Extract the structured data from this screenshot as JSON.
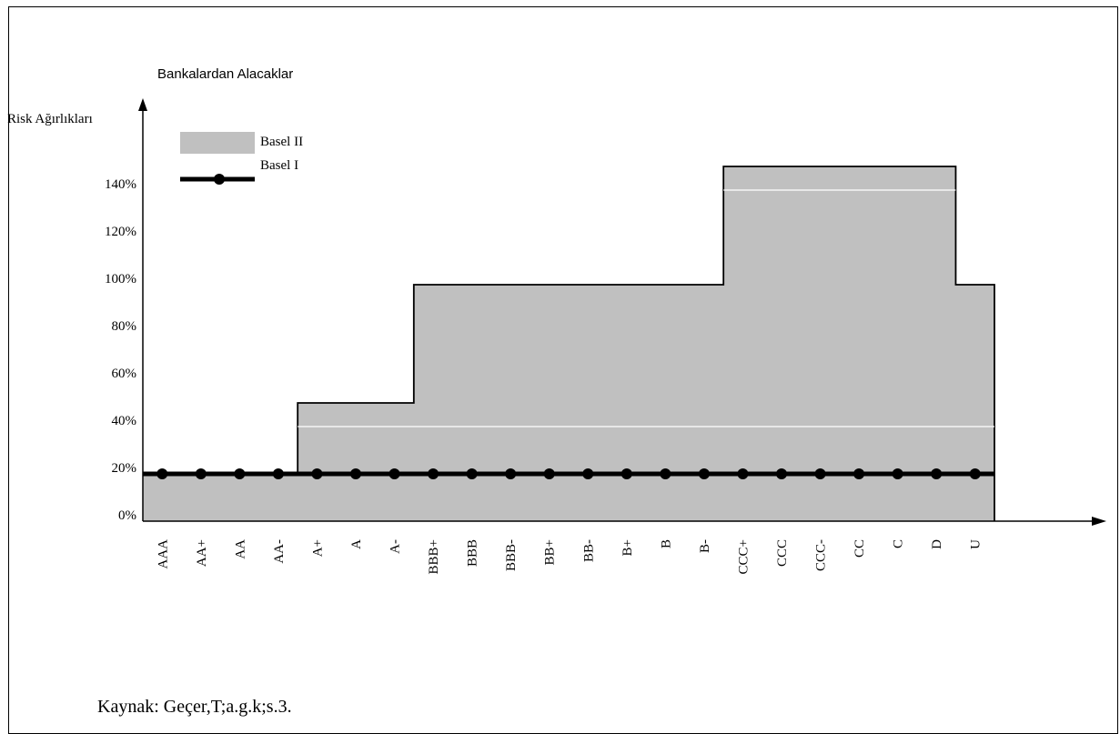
{
  "chart_data": {
    "type": "area",
    "title": "Bankalardan Alacaklar",
    "ylabel": "Risk Ağırlıkları",
    "xlabel": "",
    "ylim": [
      0,
      150
    ],
    "yticks": [
      "0%",
      "20%",
      "40%",
      "60%",
      "80%",
      "100%",
      "120%",
      "140%"
    ],
    "yticks_values": [
      0,
      20,
      40,
      60,
      80,
      100,
      120,
      140
    ],
    "categories": [
      "AAA",
      "AA+",
      "AA",
      "AA-",
      "A+",
      "A",
      "A-",
      "BBB+",
      "BBB",
      "BBB-",
      "BB+",
      "BB-",
      "B+",
      "B",
      "B-",
      "CCC+",
      "CCC",
      "CCC-",
      "CC",
      "C",
      "D",
      "U"
    ],
    "grid": false,
    "legend_position": "top-left",
    "series": [
      {
        "name": "Basel II",
        "style": "filled-step-area",
        "color": "#c0c0c0",
        "values": [
          20,
          20,
          20,
          20,
          50,
          50,
          50,
          100,
          100,
          100,
          100,
          100,
          100,
          100,
          100,
          150,
          150,
          150,
          150,
          150,
          150,
          100
        ],
        "inner_line_values": [
          null,
          null,
          null,
          null,
          40,
          40,
          40,
          40,
          40,
          40,
          40,
          40,
          40,
          40,
          40,
          40,
          40,
          40,
          40,
          40,
          40,
          40
        ],
        "inner_line_upper": [
          null,
          null,
          null,
          null,
          null,
          null,
          null,
          null,
          null,
          null,
          null,
          null,
          null,
          null,
          null,
          140,
          140,
          140,
          140,
          140,
          140,
          null
        ]
      },
      {
        "name": "Basel I",
        "style": "line-with-markers",
        "color": "#000000",
        "values": [
          20,
          20,
          20,
          20,
          20,
          20,
          20,
          20,
          20,
          20,
          20,
          20,
          20,
          20,
          20,
          20,
          20,
          20,
          20,
          20,
          20,
          20
        ]
      }
    ]
  },
  "source": "Kaynak: Geçer,T;a.g.k;s.3."
}
